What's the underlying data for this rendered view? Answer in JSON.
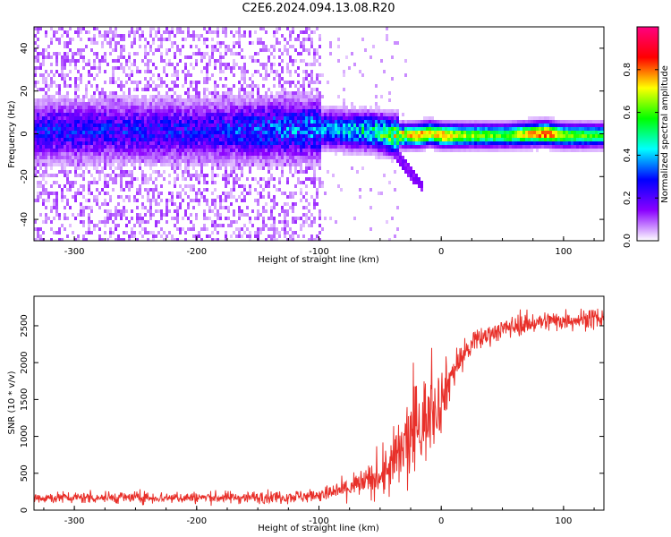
{
  "page": {
    "title": "C2E6.2024.094.13.08.R20"
  },
  "chart_data": [
    {
      "type": "heatmap",
      "xlabel": "Height of straight line (km)",
      "ylabel": "Frequency (Hz)",
      "xlim": [
        -333,
        133
      ],
      "ylim": [
        -50,
        50
      ],
      "xticks": [
        -300,
        -200,
        -100,
        0,
        100
      ],
      "yticks": [
        -40,
        -20,
        0,
        20,
        40
      ],
      "colorbar": {
        "label": "Normalized spectral amplitude",
        "range": [
          0.0,
          1.0
        ],
        "ticks": [
          0.0,
          0.2,
          0.4,
          0.6,
          0.8
        ],
        "tick_labels": [
          "0.0",
          "0.2",
          "0.4",
          "0.6",
          "0.8"
        ],
        "colormap": [
          "#ffffff",
          "#8a00ff",
          "#0000ff",
          "#00ffff",
          "#00ff00",
          "#ffff00",
          "#ff0000",
          "#ff0080"
        ]
      },
      "ridge": {
        "x": [
          -333,
          -200,
          -100,
          -60,
          -40,
          -30,
          -20,
          -10,
          0,
          20,
          50,
          85,
          100,
          133
        ],
        "center_hz": [
          2,
          2,
          3,
          2,
          0,
          0,
          0,
          1,
          0,
          0,
          0,
          1,
          0,
          0
        ],
        "peak_amplitude": [
          0.25,
          0.25,
          0.35,
          0.45,
          0.6,
          0.7,
          0.8,
          0.75,
          0.8,
          0.65,
          0.6,
          0.85,
          0.65,
          0.55
        ]
      },
      "grid": false
    },
    {
      "type": "line",
      "color": "#e8302a",
      "xlabel": "Height of straight line (km)",
      "ylabel": "SNR (10 * v/v)",
      "xlim": [
        -333,
        133
      ],
      "ylim": [
        0,
        2900
      ],
      "xticks": [
        -300,
        -200,
        -100,
        0,
        100
      ],
      "yticks": [
        0,
        500,
        1000,
        1500,
        2000,
        2500
      ],
      "series_envelope": {
        "x": [
          -333,
          -300,
          -250,
          -200,
          -150,
          -110,
          -90,
          -70,
          -50,
          -40,
          -30,
          -20,
          -10,
          0,
          10,
          20,
          30,
          40,
          60,
          80,
          100,
          133
        ],
        "mean": [
          170,
          170,
          170,
          170,
          175,
          190,
          230,
          330,
          450,
          600,
          850,
          1100,
          1300,
          1500,
          1900,
          2150,
          2300,
          2400,
          2500,
          2550,
          2580,
          2600
        ],
        "spread": [
          90,
          90,
          90,
          90,
          95,
          100,
          130,
          200,
          300,
          500,
          700,
          800,
          600,
          500,
          300,
          220,
          180,
          160,
          160,
          160,
          160,
          160
        ]
      },
      "grid": false
    }
  ]
}
